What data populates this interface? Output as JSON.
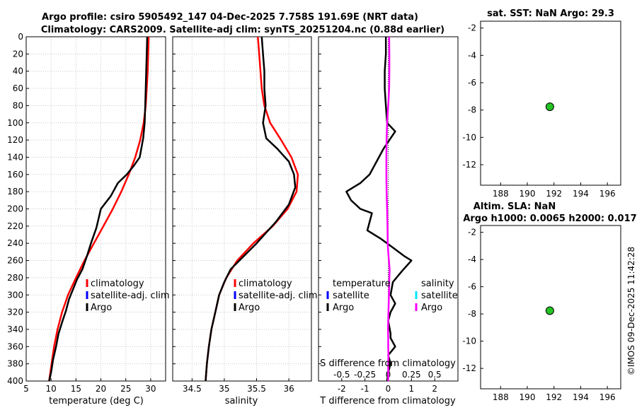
{
  "header": {
    "title_line1": "Argo profile: csiro 5905492_147 04-Dec-2025 7.758S 191.69E (NRT data)",
    "title_line2": "Climatology: CARS2009. Satellite-adj clim: synTS_20251204.nc (0.88d earlier)"
  },
  "footer": {
    "timestamp_label": "©IMOS 09-Dec-2025 11:42:28"
  },
  "colors": {
    "climatology": "#ff0000",
    "satellite_adj": "#0000ff",
    "satellite_S": "#00e5ff",
    "argo": "#000000",
    "salinity_diff": "#ff00ff",
    "marker": "#22c322",
    "grid": "#c8c8c8"
  },
  "chart_data": [
    {
      "type": "line",
      "id": "temperature",
      "xlabel": "temperature (deg C)",
      "xlim": [
        5,
        33
      ],
      "ylim": [
        0,
        400
      ],
      "y_inverted": true,
      "xticks": [
        5,
        10,
        15,
        20,
        25,
        30
      ],
      "yticks": [
        0,
        20,
        40,
        60,
        80,
        100,
        120,
        140,
        160,
        180,
        200,
        220,
        240,
        260,
        280,
        300,
        320,
        340,
        360,
        380,
        400
      ],
      "legend": [
        "climatology",
        "satellite-adj. clim",
        "Argo"
      ],
      "series": [
        {
          "name": "climatology",
          "color_key": "climatology",
          "x": [
            29.6,
            29.5,
            29.4,
            29.2,
            29.0,
            28.6,
            27.9,
            26.9,
            25.6,
            24.1,
            22.4,
            20.5,
            18.6,
            16.7,
            15.0,
            13.4,
            12.2,
            11.3,
            10.6,
            10.1,
            9.6
          ],
          "y": [
            0,
            20,
            40,
            60,
            80,
            100,
            120,
            140,
            160,
            180,
            200,
            220,
            240,
            260,
            280,
            300,
            320,
            340,
            360,
            380,
            400
          ]
        },
        {
          "name": "Argo",
          "color_key": "argo",
          "x": [
            29.3,
            29.2,
            29.1,
            29.0,
            28.9,
            28.8,
            28.5,
            27.8,
            26.6,
            25.2,
            23.4,
            22.0,
            20.0,
            19.1,
            18.0,
            17.2,
            16.3,
            15.2,
            14.3,
            13.6,
            13.0,
            12.3,
            11.5,
            11.0,
            10.4,
            10.0,
            9.6
          ],
          "y": [
            0,
            20,
            40,
            60,
            80,
            100,
            118,
            140,
            150,
            160,
            170,
            185,
            200,
            222,
            240,
            255,
            270,
            282,
            295,
            305,
            318,
            330,
            345,
            360,
            375,
            390,
            400
          ]
        }
      ]
    },
    {
      "type": "line",
      "id": "salinity",
      "xlabel": "salinity",
      "xlim": [
        34.2,
        36.35
      ],
      "ylim": [
        0,
        400
      ],
      "y_inverted": true,
      "xticks": [
        34.5,
        35,
        35.5,
        36
      ],
      "legend": [
        "climatology",
        "satellite-adj. clim",
        "Argo"
      ],
      "series": [
        {
          "name": "climatology",
          "color_key": "climatology",
          "x": [
            35.52,
            35.54,
            35.56,
            35.58,
            35.62,
            35.71,
            35.88,
            36.04,
            36.14,
            36.12,
            35.98,
            35.75,
            35.45,
            35.2,
            35.03,
            34.92,
            34.86,
            34.8,
            34.76,
            34.73,
            34.71
          ],
          "y": [
            0,
            20,
            40,
            60,
            80,
            100,
            120,
            140,
            160,
            180,
            200,
            220,
            240,
            260,
            280,
            300,
            320,
            340,
            360,
            380,
            400
          ]
        },
        {
          "name": "Argo",
          "color_key": "argo",
          "x": [
            35.58,
            35.6,
            35.62,
            35.62,
            35.64,
            35.6,
            35.65,
            35.82,
            36.0,
            36.08,
            36.1,
            36.0,
            35.8,
            35.5,
            35.3,
            35.1,
            35.0,
            34.92,
            34.86,
            34.8,
            34.76,
            34.73,
            34.71
          ],
          "y": [
            0,
            20,
            40,
            60,
            80,
            100,
            118,
            130,
            145,
            160,
            175,
            195,
            215,
            240,
            255,
            270,
            285,
            300,
            320,
            340,
            360,
            380,
            400
          ]
        }
      ]
    },
    {
      "type": "line",
      "id": "differences",
      "xlabel": "T difference from climatology",
      "top_axis_label": "S difference from climatology",
      "xlim": [
        -3,
        3
      ],
      "ylim": [
        0,
        400
      ],
      "y_inverted": true,
      "xticks": [
        -2,
        -1,
        0,
        1,
        2
      ],
      "top_xticks": [
        "-0.5",
        "-0.25",
        "0",
        "0.25",
        "0.5"
      ],
      "legend_T": [
        "temperature",
        "satellite",
        "Argo"
      ],
      "legend_S": [
        "salinity",
        "satellite",
        "Argo"
      ],
      "series": [
        {
          "name": "Argo T diff",
          "color_key": "argo",
          "x": [
            -0.1,
            -0.1,
            -0.15,
            -0.15,
            -0.1,
            -0.05,
            0.3,
            -0.2,
            -0.4,
            -0.8,
            -1.2,
            -1.8,
            -1.6,
            -1.2,
            -0.7,
            -0.9,
            -0.3,
            0.2,
            0.7,
            1.0,
            0.6,
            0.2,
            0.1,
            0.3,
            0.1,
            0.0,
            0.1,
            0.1,
            0.3,
            0.0,
            0.1,
            0.0,
            -0.05
          ],
          "y": [
            0,
            20,
            40,
            60,
            80,
            100,
            110,
            130,
            140,
            160,
            170,
            180,
            190,
            200,
            205,
            225,
            235,
            245,
            255,
            260,
            272,
            285,
            300,
            310,
            320,
            330,
            345,
            350,
            360,
            370,
            380,
            390,
            400
          ]
        },
        {
          "name": "Argo S diff",
          "color_key": "salinity_diff",
          "x": [
            0.04,
            0.05,
            0.05,
            0.04,
            0.0,
            -0.05,
            -0.07,
            -0.08,
            -0.08,
            -0.07,
            -0.05,
            -0.03,
            -0.02,
            0.0,
            0.03,
            0.06,
            0.05,
            0.03,
            0.01,
            0.0,
            -0.01,
            0.0,
            0.0,
            0.01,
            0.0,
            0.0,
            0.0
          ],
          "y": [
            0,
            20,
            40,
            60,
            80,
            100,
            120,
            140,
            160,
            180,
            200,
            220,
            240,
            250,
            260,
            270,
            280,
            300,
            320,
            330,
            340,
            350,
            360,
            370,
            380,
            390,
            400
          ]
        }
      ]
    },
    {
      "type": "scatter",
      "id": "sst_map",
      "title": "sat. SST: NaN Argo: 29.3",
      "xlim": [
        186.5,
        197
      ],
      "ylim": [
        -13.5,
        -1.5
      ],
      "xticks": [
        188,
        190,
        192,
        194,
        196
      ],
      "yticks": [
        -2,
        -4,
        -6,
        -8,
        -10,
        -12
      ],
      "points": [
        {
          "x": 191.69,
          "y": -7.758
        }
      ]
    },
    {
      "type": "scatter",
      "id": "sla_map",
      "title_line1": "Altim. SLA: NaN",
      "title_line2": "Argo h1000: 0.0065 h2000: 0.017",
      "xlim": [
        186.5,
        197
      ],
      "ylim": [
        -13.5,
        -1.5
      ],
      "xticks": [
        188,
        190,
        192,
        194,
        196
      ],
      "yticks": [
        -2,
        -4,
        -6,
        -8,
        -10,
        -12
      ],
      "points": [
        {
          "x": 191.69,
          "y": -7.758
        }
      ]
    }
  ]
}
